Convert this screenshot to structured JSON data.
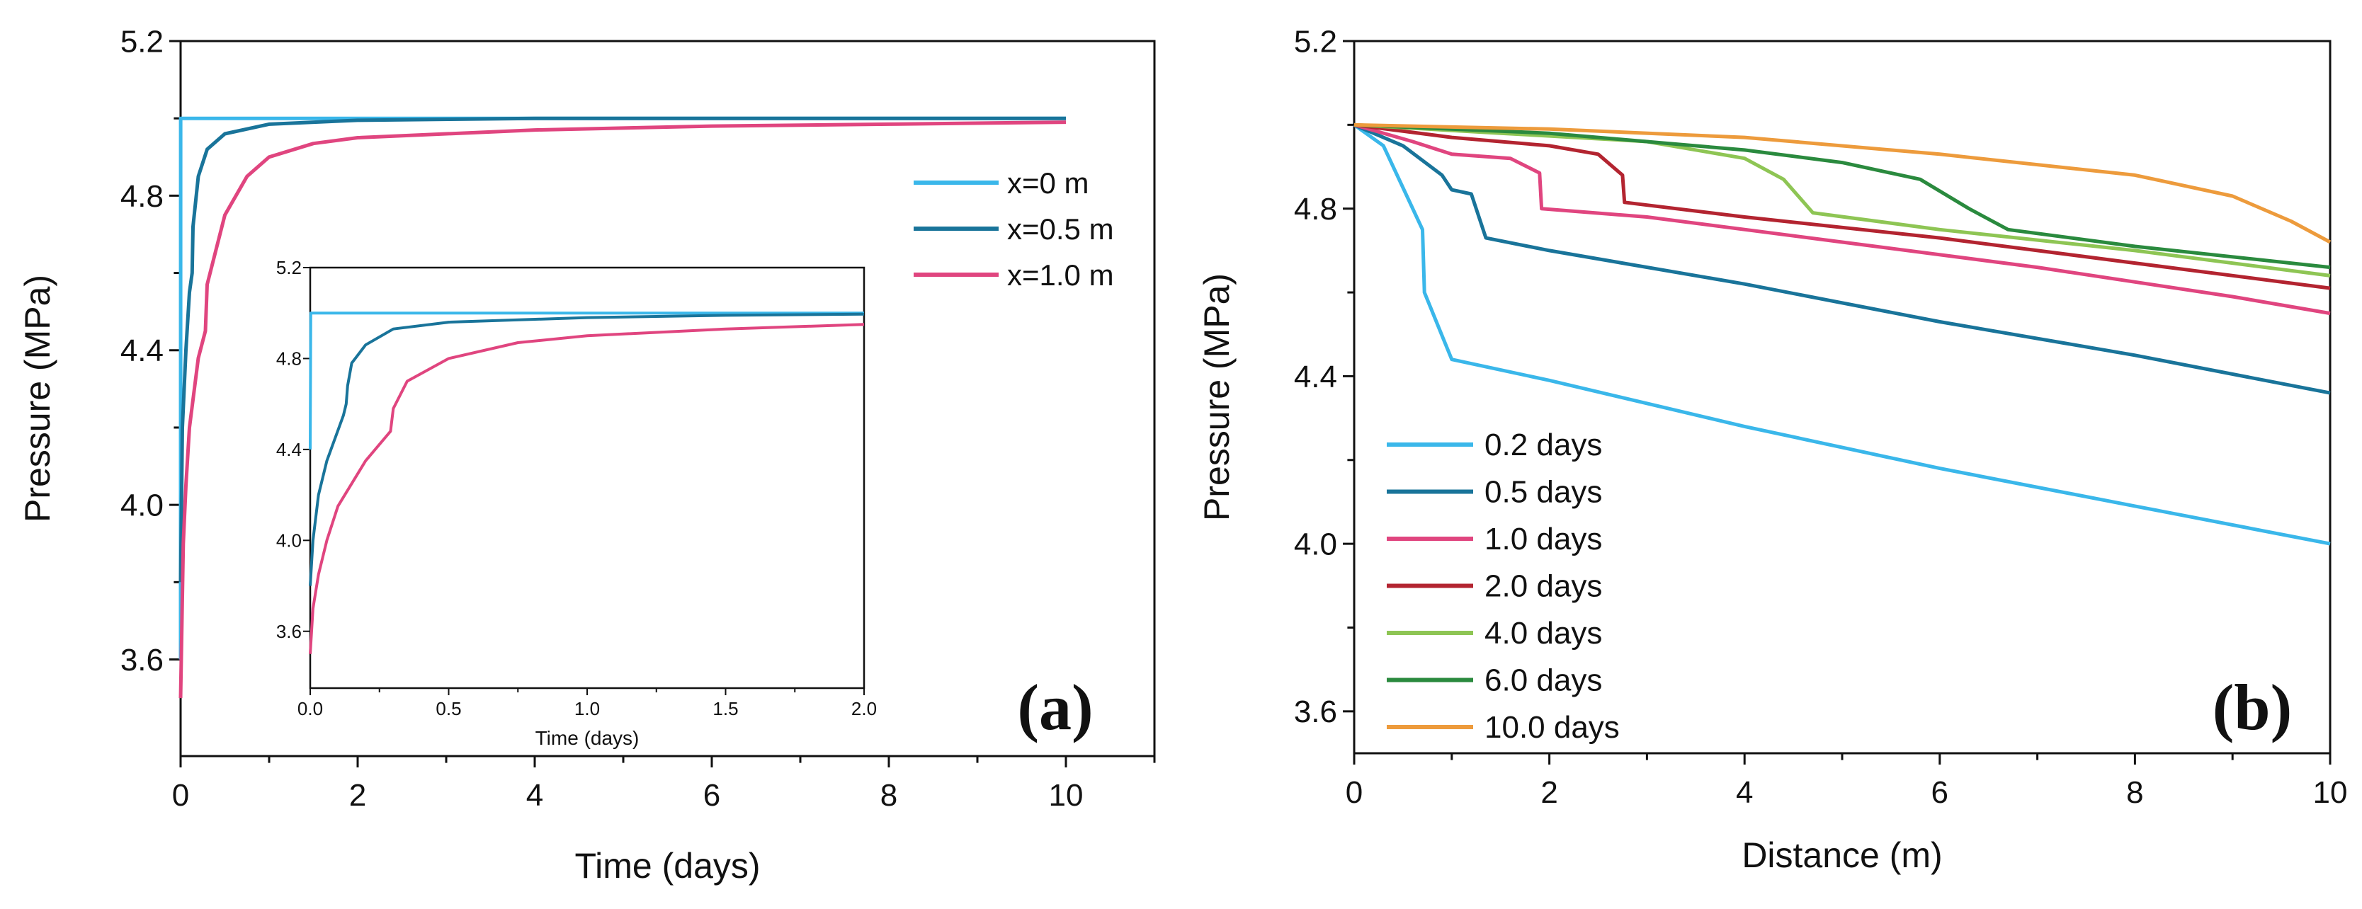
{
  "chart_data": [
    {
      "type": "line",
      "panel_label": "(a)",
      "xlabel": "Time (days)",
      "ylabel": "Pressure (MPa)",
      "xlim": [
        0,
        11
      ],
      "ylim": [
        3.35,
        5.2
      ],
      "xticks": [
        "0",
        "2",
        "4",
        "6",
        "8",
        "10"
      ],
      "yticks": [
        "3.6",
        "4.0",
        "4.4",
        "4.8",
        "5.2"
      ],
      "legend_position": "upper-right",
      "series": [
        {
          "name": "x=0  m",
          "color": "#3ab7ea",
          "points": [
            [
              0,
              3.6
            ],
            [
              0.001,
              5.0
            ],
            [
              10,
              5.0
            ]
          ]
        },
        {
          "name": "x=0.5 m",
          "color": "#19749a",
          "points": [
            [
              0,
              3.8
            ],
            [
              0.02,
              4.2
            ],
            [
              0.06,
              4.4
            ],
            [
              0.1,
              4.55
            ],
            [
              0.13,
              4.6
            ],
            [
              0.14,
              4.72
            ],
            [
              0.2,
              4.85
            ],
            [
              0.3,
              4.92
            ],
            [
              0.5,
              4.96
            ],
            [
              1.0,
              4.985
            ],
            [
              2.0,
              4.995
            ],
            [
              4,
              5.0
            ],
            [
              10,
              5.0
            ]
          ]
        },
        {
          "name": "x=1.0 m",
          "color": "#e0457f",
          "points": [
            [
              0,
              3.5
            ],
            [
              0.03,
              3.9
            ],
            [
              0.06,
              4.05
            ],
            [
              0.1,
              4.2
            ],
            [
              0.2,
              4.38
            ],
            [
              0.28,
              4.45
            ],
            [
              0.3,
              4.57
            ],
            [
              0.5,
              4.75
            ],
            [
              0.75,
              4.85
            ],
            [
              1.0,
              4.9
            ],
            [
              1.5,
              4.935
            ],
            [
              2.0,
              4.95
            ],
            [
              4,
              4.97
            ],
            [
              6,
              4.98
            ],
            [
              8,
              4.985
            ],
            [
              10,
              4.99
            ]
          ]
        }
      ],
      "inset": {
        "xlabel": "Time (days)",
        "xlim": [
          0,
          2.0
        ],
        "ylim": [
          3.35,
          5.2
        ],
        "xticks": [
          "0.0",
          "0.5",
          "1.0",
          "1.5",
          "2.0"
        ],
        "yticks": [
          "3.6",
          "4.0",
          "4.4",
          "4.8",
          "5.2"
        ],
        "series": [
          {
            "name": "x=0  m",
            "color": "#3ab7ea",
            "points": [
              [
                0,
                4.4
              ],
              [
                0.002,
                5.0
              ],
              [
                2.0,
                5.0
              ]
            ]
          },
          {
            "name": "x=0.5 m",
            "color": "#19749a",
            "points": [
              [
                0,
                3.8
              ],
              [
                0.01,
                4.0
              ],
              [
                0.03,
                4.2
              ],
              [
                0.06,
                4.35
              ],
              [
                0.09,
                4.45
              ],
              [
                0.12,
                4.55
              ],
              [
                0.13,
                4.6
              ],
              [
                0.135,
                4.68
              ],
              [
                0.15,
                4.78
              ],
              [
                0.2,
                4.86
              ],
              [
                0.3,
                4.93
              ],
              [
                0.5,
                4.96
              ],
              [
                1.0,
                4.98
              ],
              [
                1.5,
                4.99
              ],
              [
                2.0,
                4.995
              ]
            ]
          },
          {
            "name": "x=1.0 m",
            "color": "#e0457f",
            "points": [
              [
                0,
                3.5
              ],
              [
                0.01,
                3.7
              ],
              [
                0.03,
                3.85
              ],
              [
                0.06,
                4.0
              ],
              [
                0.1,
                4.15
              ],
              [
                0.2,
                4.35
              ],
              [
                0.29,
                4.48
              ],
              [
                0.3,
                4.58
              ],
              [
                0.35,
                4.7
              ],
              [
                0.5,
                4.8
              ],
              [
                0.75,
                4.87
              ],
              [
                1.0,
                4.9
              ],
              [
                1.5,
                4.93
              ],
              [
                2.0,
                4.95
              ]
            ]
          }
        ]
      }
    },
    {
      "type": "line",
      "panel_label": "(b)",
      "xlabel": "Distance (m)",
      "ylabel": "Pressure (MPa)",
      "xlim": [
        0,
        10
      ],
      "ylim": [
        3.5,
        5.2
      ],
      "xticks": [
        "0",
        "2",
        "4",
        "6",
        "8",
        "10"
      ],
      "yticks": [
        "3.6",
        "4.0",
        "4.4",
        "4.8",
        "5.2"
      ],
      "legend_position": "lower-left",
      "series": [
        {
          "name": "0.2 days",
          "color": "#3ab7ea",
          "points": [
            [
              0,
              5.0
            ],
            [
              0.3,
              4.95
            ],
            [
              0.5,
              4.85
            ],
            [
              0.7,
              4.75
            ],
            [
              0.72,
              4.6
            ],
            [
              1.0,
              4.44
            ],
            [
              2,
              4.39
            ],
            [
              4,
              4.28
            ],
            [
              6,
              4.18
            ],
            [
              8,
              4.09
            ],
            [
              10,
              4.0
            ]
          ]
        },
        {
          "name": "0.5 days",
          "color": "#19749a",
          "points": [
            [
              0,
              5.0
            ],
            [
              0.5,
              4.95
            ],
            [
              0.9,
              4.88
            ],
            [
              1.0,
              4.845
            ],
            [
              1.2,
              4.835
            ],
            [
              1.35,
              4.73
            ],
            [
              2,
              4.7
            ],
            [
              4,
              4.62
            ],
            [
              6,
              4.53
            ],
            [
              8,
              4.45
            ],
            [
              10,
              4.36
            ]
          ]
        },
        {
          "name": "1.0 days",
          "color": "#e0457f",
          "points": [
            [
              0,
              5.0
            ],
            [
              0.6,
              4.96
            ],
            [
              1.0,
              4.93
            ],
            [
              1.6,
              4.92
            ],
            [
              1.9,
              4.885
            ],
            [
              1.92,
              4.8
            ],
            [
              3,
              4.78
            ],
            [
              5,
              4.72
            ],
            [
              7,
              4.66
            ],
            [
              9,
              4.59
            ],
            [
              10,
              4.55
            ]
          ]
        },
        {
          "name": "2.0 days",
          "color": "#b32430",
          "points": [
            [
              0,
              5.0
            ],
            [
              1.0,
              4.97
            ],
            [
              2.0,
              4.95
            ],
            [
              2.5,
              4.93
            ],
            [
              2.75,
              4.88
            ],
            [
              2.77,
              4.815
            ],
            [
              4,
              4.78
            ],
            [
              6,
              4.73
            ],
            [
              8,
              4.67
            ],
            [
              10,
              4.61
            ]
          ]
        },
        {
          "name": "4.0 days",
          "color": "#8ec554",
          "points": [
            [
              0,
              5.0
            ],
            [
              1.5,
              4.98
            ],
            [
              3,
              4.96
            ],
            [
              4,
              4.92
            ],
            [
              4.4,
              4.87
            ],
            [
              4.7,
              4.79
            ],
            [
              6,
              4.75
            ],
            [
              8,
              4.7
            ],
            [
              10,
              4.64
            ]
          ]
        },
        {
          "name": "6.0 days",
          "color": "#2a8a3e",
          "points": [
            [
              0,
              5.0
            ],
            [
              2,
              4.98
            ],
            [
              4,
              4.94
            ],
            [
              5,
              4.91
            ],
            [
              5.8,
              4.87
            ],
            [
              6.3,
              4.8
            ],
            [
              6.7,
              4.75
            ],
            [
              8,
              4.71
            ],
            [
              10,
              4.66
            ]
          ]
        },
        {
          "name": "10.0 days",
          "color": "#ed9b3c",
          "points": [
            [
              0,
              5.0
            ],
            [
              2,
              4.99
            ],
            [
              4,
              4.97
            ],
            [
              6,
              4.93
            ],
            [
              8,
              4.88
            ],
            [
              9,
              4.83
            ],
            [
              9.6,
              4.77
            ],
            [
              10,
              4.72
            ]
          ]
        }
      ]
    }
  ]
}
